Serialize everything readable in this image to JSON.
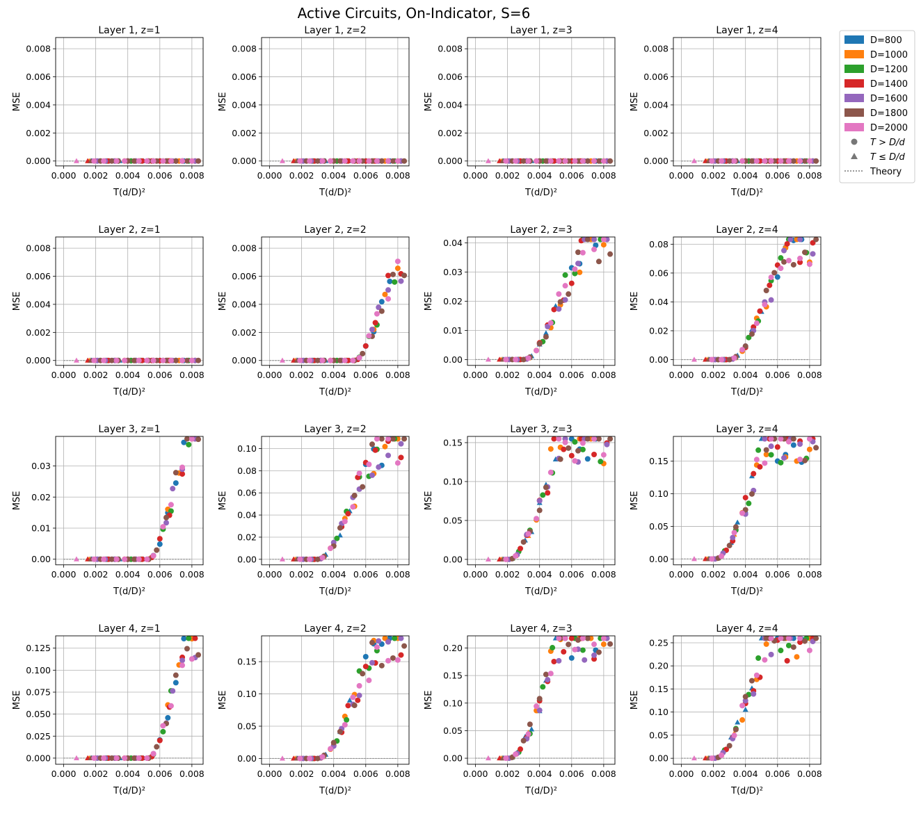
{
  "figure": {
    "title": "Active Circuits, On-Indicator, S=6"
  },
  "legend": {
    "entries": [
      {
        "label": "D=800",
        "color": "#1f77b4"
      },
      {
        "label": "D=1000",
        "color": "#ff7f0e"
      },
      {
        "label": "D=1200",
        "color": "#2ca02c"
      },
      {
        "label": "D=1400",
        "color": "#d62728"
      },
      {
        "label": "D=1600",
        "color": "#9467bd"
      },
      {
        "label": "D=1800",
        "color": "#8c564b"
      },
      {
        "label": "D=2000",
        "color": "#e377c2"
      }
    ],
    "marker_entries": [
      {
        "symbol": "circle",
        "label": "T > D/d"
      },
      {
        "symbol": "triangle",
        "label": "T ≤ D/d"
      }
    ],
    "line_entry": {
      "style": "dotted",
      "label": "Theory"
    }
  },
  "chart_data": {
    "type": "scatter",
    "xlabel": "T(d/D)²",
    "ylabel": "MSE",
    "xlim": [
      -0.0005,
      0.0087
    ],
    "xticks": [
      "0.000",
      "0.002",
      "0.004",
      "0.006",
      "0.008"
    ],
    "grid": true,
    "legend_placement": "outside-top-right",
    "theory_line": {
      "x": [
        0.0,
        0.008
      ],
      "y": 0.0
    },
    "panels": [
      {
        "title": "Layer 1, z=1",
        "yticks": [
          "0.000",
          "0.002",
          "0.004",
          "0.006",
          "0.008"
        ],
        "ylim": [
          -0.00035,
          0.0088
        ],
        "scale": 1,
        "profile": 0,
        "bump": 0
      },
      {
        "title": "Layer 1, z=2",
        "yticks": [
          "0.000",
          "0.002",
          "0.004",
          "0.006",
          "0.008"
        ],
        "ylim": [
          -0.00035,
          0.0088
        ],
        "scale": 1,
        "profile": 0,
        "bump": 0
      },
      {
        "title": "Layer 1, z=3",
        "yticks": [
          "0.000",
          "0.002",
          "0.004",
          "0.006",
          "0.008"
        ],
        "ylim": [
          -0.00035,
          0.0088
        ],
        "scale": 1,
        "profile": 0,
        "bump": 0
      },
      {
        "title": "Layer 1, z=4",
        "yticks": [
          "0.000",
          "0.002",
          "0.004",
          "0.006",
          "0.008"
        ],
        "ylim": [
          -0.00035,
          0.0088
        ],
        "scale": 1,
        "profile": 0,
        "bump": 0
      },
      {
        "title": "Layer 2, z=1",
        "yticks": [
          "0.000",
          "0.002",
          "0.004",
          "0.006",
          "0.008"
        ],
        "ylim": [
          -0.00035,
          0.0088
        ],
        "scale": 1,
        "profile": 0,
        "bump": 0
      },
      {
        "title": "Layer 2, z=2",
        "yticks": [
          "0.000",
          "0.002",
          "0.004",
          "0.006",
          "0.008"
        ],
        "ylim": [
          -0.00035,
          0.0088
        ],
        "scale": 0.0061,
        "profile": 1,
        "bump": 0
      },
      {
        "title": "Layer 2, z=3",
        "yticks": [
          "0.00",
          "0.01",
          "0.02",
          "0.03",
          "0.04"
        ],
        "ylim": [
          -0.002,
          0.042
        ],
        "scale": 0.04,
        "profile": 2,
        "bump": 0
      },
      {
        "title": "Layer 2, z=4",
        "yticks": [
          "0.00",
          "0.02",
          "0.04",
          "0.06",
          "0.08"
        ],
        "ylim": [
          -0.004,
          0.085
        ],
        "scale": 0.08,
        "profile": 2,
        "bump": 0
      },
      {
        "title": "Layer 3, z=1",
        "yticks": [
          "0.00",
          "0.01",
          "0.02",
          "0.03"
        ],
        "ylim": [
          -0.0018,
          0.0395
        ],
        "scale": 0.0375,
        "profile": 1,
        "bump": 0
      },
      {
        "title": "Layer 3, z=2",
        "yticks": [
          "0.00",
          "0.02",
          "0.04",
          "0.06",
          "0.08",
          "0.10"
        ],
        "ylim": [
          -0.005,
          0.111
        ],
        "scale": 0.106,
        "profile": 2,
        "bump": 0.05
      },
      {
        "title": "Layer 3, z=3",
        "yticks": [
          "0.00",
          "0.05",
          "0.10",
          "0.15"
        ],
        "ylim": [
          -0.007,
          0.158
        ],
        "scale": 0.15,
        "profile": 3,
        "bump": 0.2
      },
      {
        "title": "Layer 3, z=4",
        "yticks": [
          "0.00",
          "0.05",
          "0.10",
          "0.15"
        ],
        "ylim": [
          -0.009,
          0.188
        ],
        "scale": 0.18,
        "profile": 3,
        "bump": 0.25
      },
      {
        "title": "Layer 4, z=1",
        "yticks": [
          "0.000",
          "0.025",
          "0.050",
          "0.075",
          "0.100",
          "0.125"
        ],
        "ylim": [
          -0.007,
          0.139
        ],
        "scale": 0.133,
        "profile": 1,
        "bump": 0
      },
      {
        "title": "Layer 4, z=2",
        "yticks": [
          "0.00",
          "0.05",
          "0.10",
          "0.15"
        ],
        "ylim": [
          -0.009,
          0.19
        ],
        "scale": 0.181,
        "profile": 2,
        "bump": 0.05
      },
      {
        "title": "Layer 4, z=3",
        "yticks": [
          "0.00",
          "0.05",
          "0.10",
          "0.15",
          "0.20"
        ],
        "ylim": [
          -0.011,
          0.222
        ],
        "scale": 0.216,
        "profile": 3,
        "bump": 0.2
      },
      {
        "title": "Layer 4, z=4",
        "yticks": [
          "0.00",
          "0.05",
          "0.10",
          "0.15",
          "0.20",
          "0.25"
        ],
        "ylim": [
          -0.013,
          0.265
        ],
        "scale": 0.252,
        "profile": 3,
        "bump": 0.25
      }
    ]
  }
}
